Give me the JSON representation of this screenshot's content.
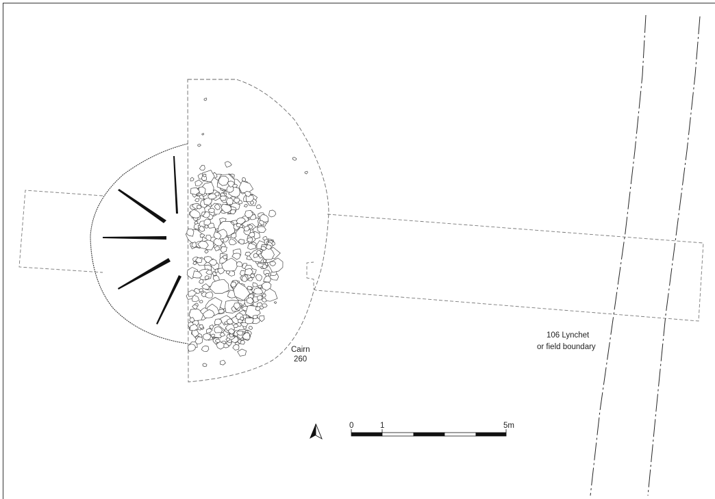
{
  "labels": {
    "cairn_line1": "Cairn",
    "cairn_line2": "260",
    "lynchet_line1": "106 Lynchet",
    "lynchet_line2": "or field boundary"
  },
  "scale_bar": {
    "tick_0": "0",
    "tick_1": "1",
    "tick_5": "5m"
  },
  "icons": {
    "north_arrow": "north-arrow-icon"
  }
}
